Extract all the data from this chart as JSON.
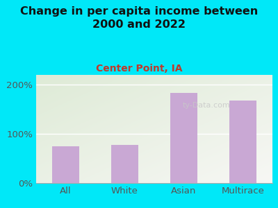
{
  "title": "Change in per capita income between\n2000 and 2022",
  "subtitle": "Center Point, IA",
  "categories": [
    "All",
    "White",
    "Asian",
    "Multirace"
  ],
  "values": [
    75,
    78,
    183,
    168
  ],
  "bar_color": "#c9a8d4",
  "title_fontsize": 11.5,
  "subtitle_fontsize": 10,
  "subtitle_color": "#c0392b",
  "title_color": "#111111",
  "background_outer": "#00e8f8",
  "background_inner_topleft": "#deebd8",
  "background_inner_bottomright": "#f8f8f5",
  "ylim": [
    0,
    220
  ],
  "yticks": [
    0,
    100,
    200
  ],
  "ytick_labels": [
    "0%",
    "100%",
    "200%"
  ],
  "watermark": "ty-Data.com",
  "watermark_color": "#c8c8c8",
  "tick_color": "#555555",
  "tick_fontsize": 9.5
}
